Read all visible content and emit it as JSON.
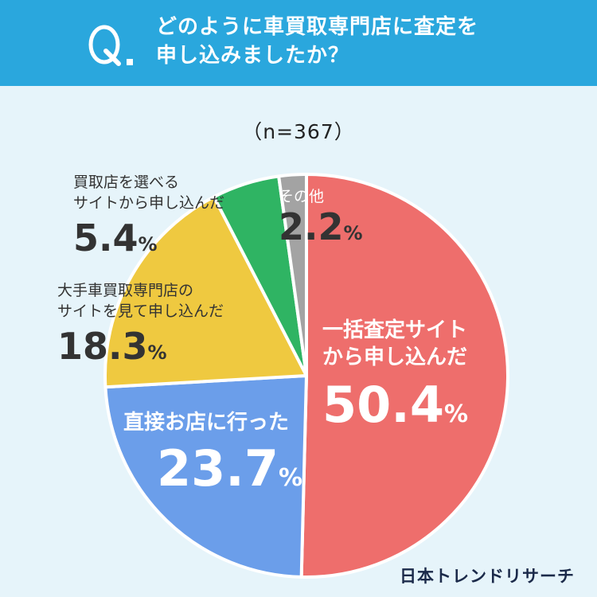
{
  "question": {
    "mark": "Q.",
    "line1": "どのように車買取専門店に査定を",
    "line2": "申し込みましたか？"
  },
  "sample_size": "（n=367）",
  "chart_data": {
    "type": "pie",
    "title": "どのように車買取専門店に査定を申し込みましたか？",
    "n": 367,
    "slices": [
      {
        "label": "一括査定サイトから申し込んだ",
        "value": 50.4,
        "color": "#ee6e6c"
      },
      {
        "label": "直接お店に行った",
        "value": 23.7,
        "color": "#6b9eea"
      },
      {
        "label": "大手車買取専門店のサイトを見て申し込んだ",
        "value": 18.3,
        "color": "#efc940"
      },
      {
        "label": "買取店を選べるサイトから申し込んだ",
        "value": 5.4,
        "color": "#2fb463"
      },
      {
        "label": "その他",
        "value": 2.2,
        "color": "#a3a3a3"
      }
    ]
  },
  "labels": {
    "ikkatsu": {
      "line1": "一括査定サイト",
      "line2": "から申し込んだ",
      "value": "50.4",
      "unit": "%"
    },
    "chokusetsu": {
      "line1": "直接お店に行った",
      "value": "23.7",
      "unit": "%"
    },
    "ote": {
      "line1": "大手車買取専門店の",
      "line2": "サイトを見て申し込んだ",
      "value": "18.3",
      "unit": "%"
    },
    "erabu": {
      "line1": "買取店を選べる",
      "line2": "サイトから申し込んだ",
      "value": "5.4",
      "unit": "%"
    },
    "sonota": {
      "line1": "その他",
      "value": "2.2",
      "unit": "%"
    }
  },
  "logo": "日本トレンドリサーチ"
}
